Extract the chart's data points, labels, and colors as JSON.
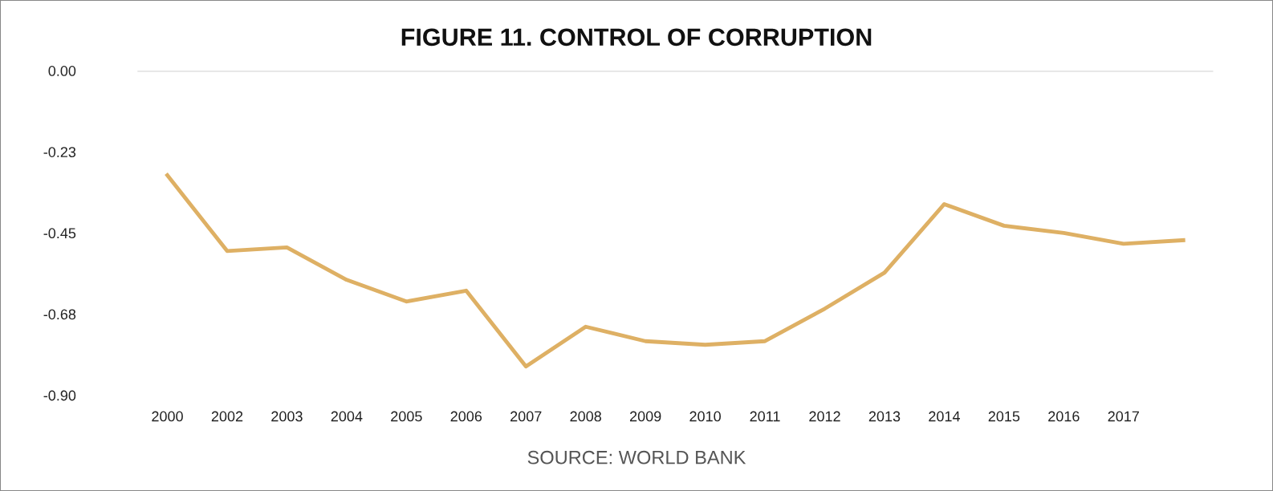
{
  "chart_data": {
    "type": "line",
    "title": "FIGURE 11. CONTROL OF CORRUPTION",
    "categories": [
      "2000",
      "2002",
      "2003",
      "2004",
      "2005",
      "2006",
      "2007",
      "2008",
      "2009",
      "2010",
      "2011",
      "2012",
      "2013",
      "2014",
      "2015",
      "2016",
      "2017",
      null
    ],
    "series": [
      {
        "color": "#deb064",
        "values": [
          -0.29,
          -0.5,
          -0.49,
          -0.58,
          -0.64,
          -0.61,
          -0.82,
          -0.71,
          -0.75,
          -0.76,
          -0.75,
          -0.66,
          -0.56,
          -0.37,
          -0.43,
          -0.45,
          -0.48,
          -0.47
        ]
      }
    ],
    "ylim": [
      -0.9,
      0
    ],
    "yticks": [
      {
        "value": 0,
        "label": "0.00"
      },
      {
        "value": -0.225,
        "label": "-0.23"
      },
      {
        "value": -0.45,
        "label": "-0.45"
      },
      {
        "value": -0.675,
        "label": "-0.68"
      },
      {
        "value": -0.9,
        "label": "-0.90"
      }
    ],
    "ref_lines": [
      {
        "axis": "y",
        "value": 0,
        "color": "#d9d9d9"
      }
    ],
    "annotations": [
      "SOURCE: WORLD BANK"
    ],
    "grid": false,
    "marker": "none",
    "line_style": "solid"
  }
}
